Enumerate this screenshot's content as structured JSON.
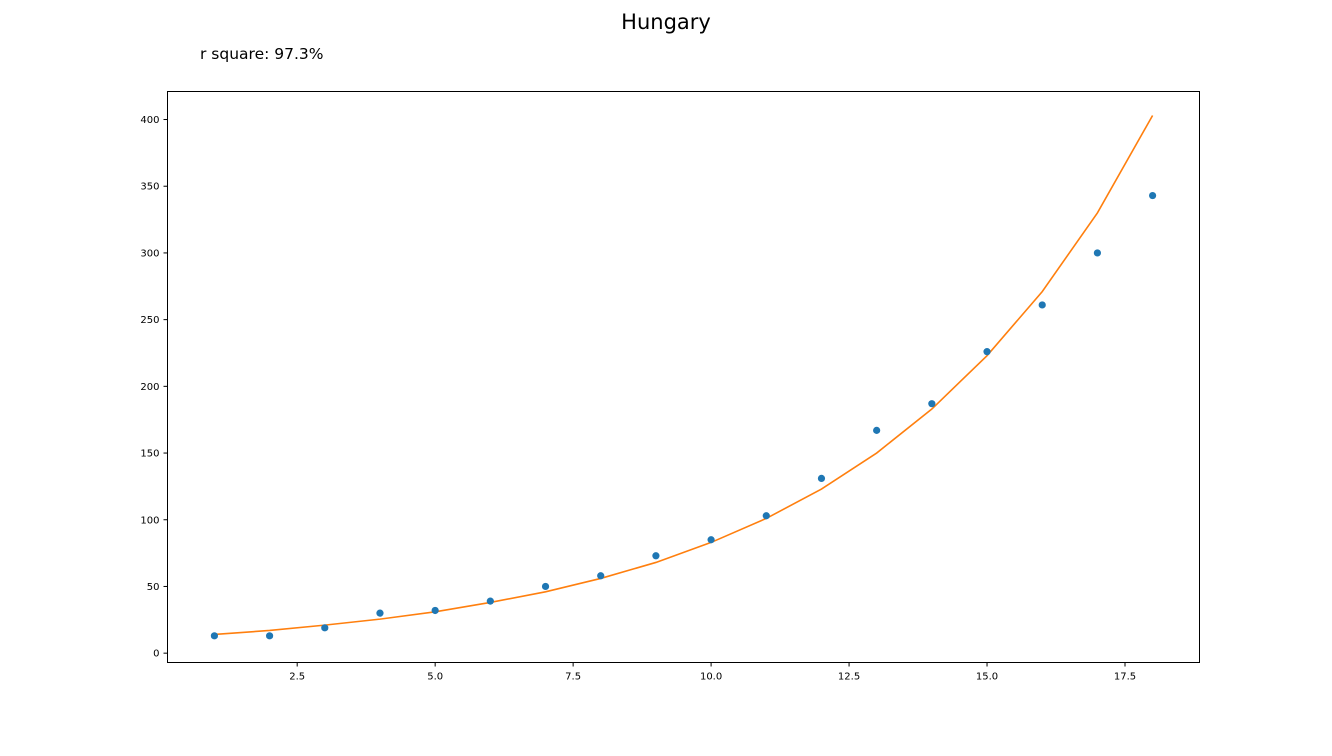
{
  "chart_data": {
    "type": "scatter",
    "title": "Hungary",
    "annotation": "r square: 97.3%",
    "xlabel": "",
    "ylabel": "",
    "xlim": [
      0.15,
      18.85
    ],
    "ylim": [
      -7,
      421
    ],
    "xticks": [
      2.5,
      5.0,
      7.5,
      10.0,
      12.5,
      15.0,
      17.5
    ],
    "xtick_labels": [
      "2.5",
      "5.0",
      "7.5",
      "10.0",
      "12.5",
      "15.0",
      "17.5"
    ],
    "yticks": [
      0,
      50,
      100,
      150,
      200,
      250,
      300,
      350,
      400
    ],
    "ytick_labels": [
      "0",
      "50",
      "100",
      "150",
      "200",
      "250",
      "300",
      "350",
      "400"
    ],
    "grid": false,
    "series": [
      {
        "kind": "points",
        "color": "#1f77b4",
        "x": [
          1,
          2,
          3,
          4,
          5,
          6,
          7,
          8,
          9,
          10,
          11,
          12,
          13,
          14,
          15,
          16,
          17,
          18
        ],
        "y": [
          13,
          13,
          19,
          30,
          32,
          39,
          50,
          58,
          73,
          85,
          103,
          131,
          167,
          187,
          226,
          261,
          300,
          343
        ]
      },
      {
        "kind": "line",
        "color": "#ff7f0e",
        "x": [
          1,
          2,
          3,
          4,
          5,
          6,
          7,
          8,
          9,
          10,
          11,
          12,
          13,
          14,
          15,
          16,
          17,
          18
        ],
        "y": [
          14,
          17,
          21,
          25.5,
          31,
          38,
          46,
          56,
          68,
          83,
          101,
          123,
          150,
          183,
          223,
          271,
          330,
          403
        ]
      }
    ]
  }
}
